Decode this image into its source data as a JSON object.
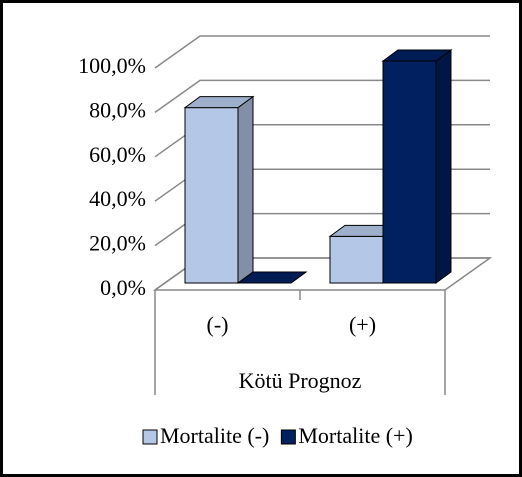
{
  "chart_data": {
    "type": "bar3d",
    "categories": [
      "(-)",
      "(+)"
    ],
    "x_label": "Kötü Prognoz",
    "series": [
      {
        "name": "Mortalite (-)",
        "color": "#b4c7e7",
        "values": [
          79,
          21
        ]
      },
      {
        "name": "Mortalite (+)",
        "color": "#002060",
        "values": [
          0,
          100
        ]
      }
    ],
    "ylim": [
      0,
      100
    ],
    "yticks": [
      {
        "value": 0,
        "label": "0,0%"
      },
      {
        "value": 20,
        "label": "20,0%"
      },
      {
        "value": 40,
        "label": "40,0%"
      },
      {
        "value": 60,
        "label": "60,0%"
      },
      {
        "value": 80,
        "label": "80,0%"
      },
      {
        "value": 100,
        "label": "100,0%"
      }
    ],
    "grid": true,
    "legend": "bottom"
  }
}
